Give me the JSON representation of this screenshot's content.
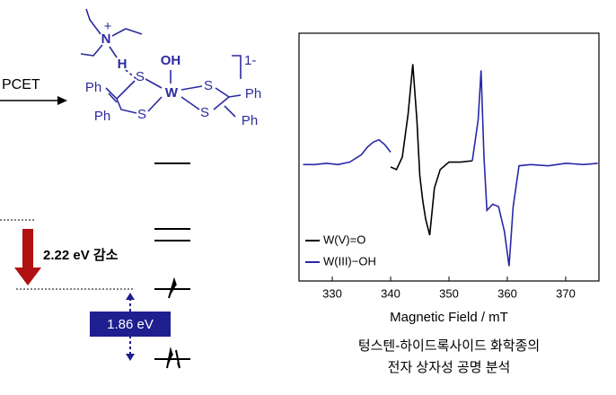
{
  "diagram": {
    "reaction_label": "PCET",
    "ammonium": {
      "atom": "N",
      "charge": "+",
      "hydrogen": "H"
    },
    "complex": {
      "metal": "W",
      "ligand": "OH",
      "sulfurs": [
        "S",
        "S",
        "S",
        "S"
      ],
      "phenyls": [
        "Ph",
        "Ph",
        "Ph",
        "Ph"
      ],
      "charge": "1-"
    },
    "energy_drop": "2.22 eV 감소",
    "gap": "1.86 eV",
    "caption": [
      "텅스텐-하이드록사이드 화학종의",
      "전자 상자성 공명 분석"
    ]
  },
  "chart_data": {
    "type": "line",
    "x_label": "Magnetic Field / mT",
    "x": [
      325,
      327,
      329,
      331,
      333,
      335,
      336,
      337,
      338,
      339,
      340,
      341,
      342,
      343,
      343.8,
      344.5,
      345,
      345.5,
      346,
      346.7,
      347.5,
      348.5,
      350,
      352,
      354,
      355,
      355.5,
      356,
      356.5,
      357.5,
      358.5,
      359.5,
      360.3,
      361,
      362,
      364,
      367,
      370,
      373,
      375.5
    ],
    "series": [
      {
        "name": "W(V)=O",
        "color": "#000000",
        "values": [
          null,
          null,
          null,
          null,
          null,
          null,
          null,
          null,
          null,
          null,
          -0.08,
          -0.1,
          0.0,
          0.35,
          0.75,
          0.3,
          -0.15,
          -0.35,
          -0.5,
          -0.63,
          -0.25,
          -0.1,
          -0.04,
          -0.04,
          -0.03,
          null,
          null,
          null,
          null,
          null,
          null,
          null,
          null,
          null,
          null,
          null,
          null,
          null,
          null,
          null
        ]
      },
      {
        "name": "W(III)−OH",
        "color": "#2828a8",
        "values": [
          -0.06,
          -0.06,
          -0.05,
          -0.06,
          -0.04,
          0.02,
          0.08,
          0.12,
          0.14,
          0.1,
          0.04,
          null,
          null,
          null,
          null,
          null,
          null,
          null,
          null,
          null,
          null,
          null,
          null,
          null,
          -0.03,
          0.3,
          0.7,
          0.0,
          -0.43,
          -0.38,
          -0.4,
          -0.6,
          -0.88,
          -0.4,
          -0.07,
          -0.06,
          -0.07,
          -0.05,
          -0.06,
          -0.05
        ]
      }
    ],
    "xlim": [
      324.3,
      375.7
    ],
    "xticks": [
      330,
      340,
      350,
      360,
      370
    ],
    "ylim": [
      -1,
      1
    ],
    "legend": "lower-left"
  }
}
